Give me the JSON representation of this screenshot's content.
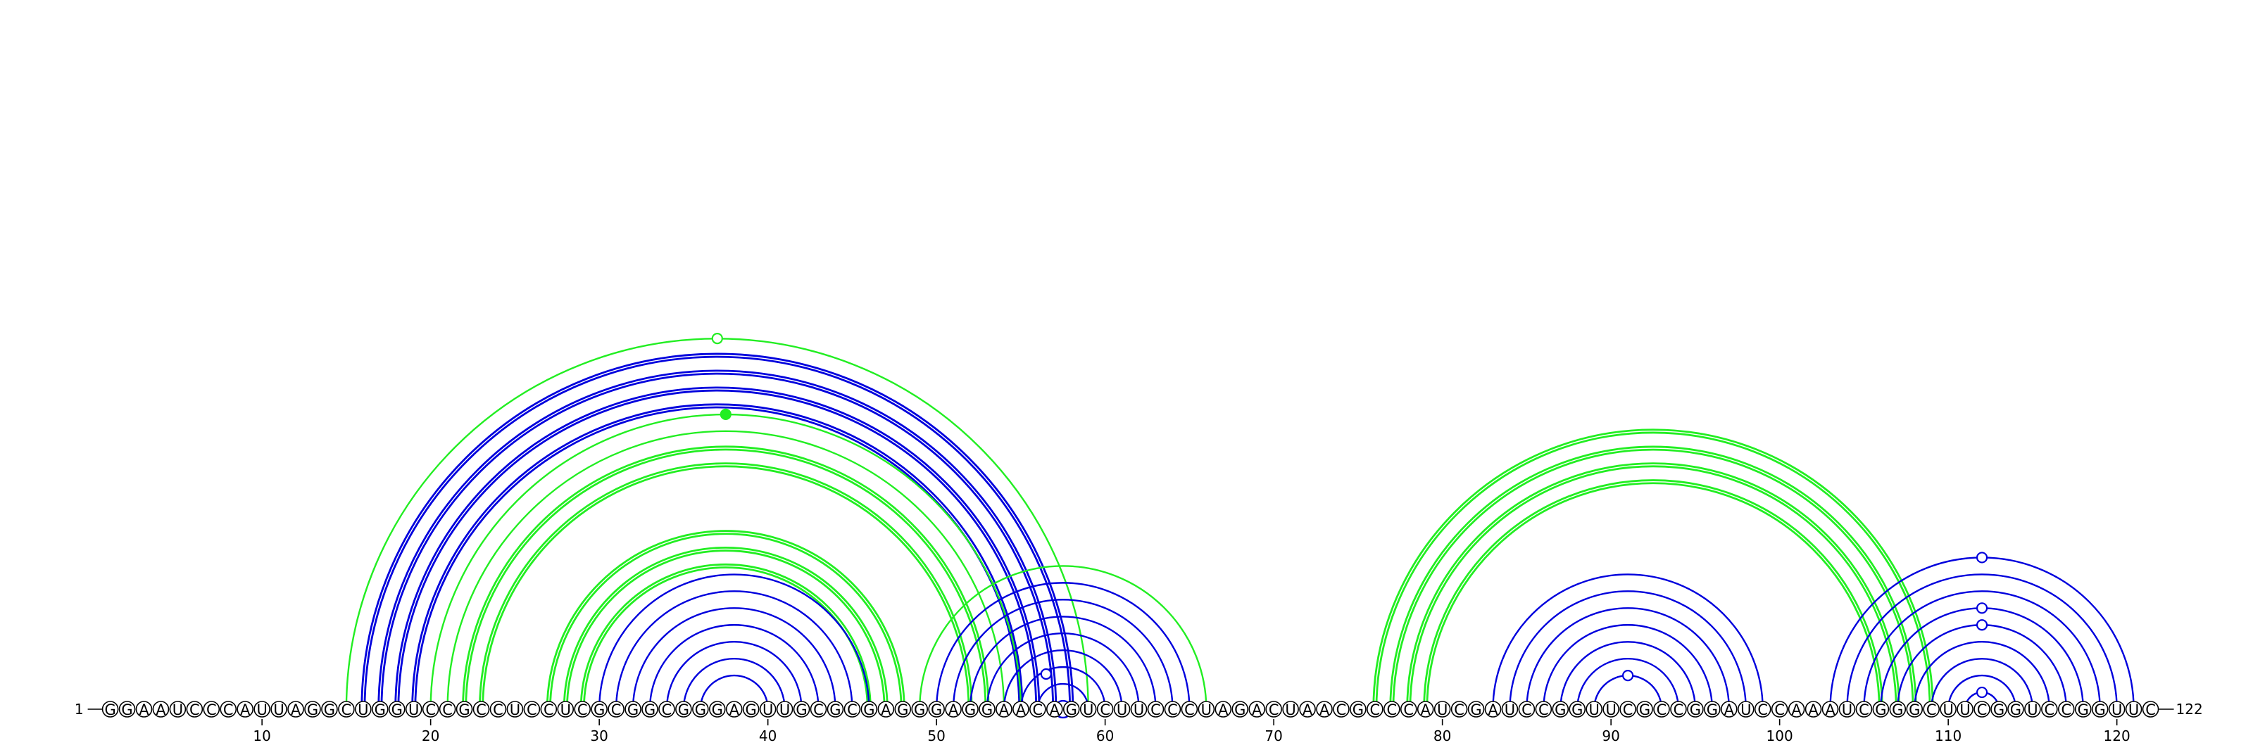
{
  "sequence": "GGAAUCCCAUUAGGCUGGUCCGCCUCCUCGCGGCGGGAGUUGCGCGAGGGAGGAACAGUCUUCCCUAGACUAACGCCCAUCGAUCCGGUUCGCCGGAUCCAAAUCGGGCUUCGGUCCGGUUC",
  "start_label": "1",
  "end_label": "122",
  "tick_labels": [
    "10",
    "20",
    "30",
    "40",
    "50",
    "60",
    "70",
    "80",
    "90",
    "100",
    "110",
    "120"
  ],
  "colors": {
    "blue": "#0000dd",
    "green": "#22ee22"
  },
  "helices": [
    {
      "color": "blue",
      "i": 16,
      "j": 58,
      "len": 4,
      "double": true
    },
    {
      "color": "green",
      "i": 15,
      "j": 59,
      "len": 1,
      "double": false,
      "marker": "open"
    },
    {
      "color": "green",
      "i": 20,
      "j": 55,
      "len": 2,
      "double": false,
      "marker": "filled"
    },
    {
      "color": "green",
      "i": 22,
      "j": 53,
      "len": 2,
      "double": true
    },
    {
      "color": "green",
      "i": 27,
      "j": 48,
      "len": 3,
      "double": true
    },
    {
      "color": "blue",
      "i": 30,
      "j": 46,
      "len": 7,
      "double": false
    },
    {
      "color": "green",
      "i": 49,
      "j": 66,
      "len": 1,
      "double": false
    },
    {
      "color": "blue",
      "i": 50,
      "j": 65,
      "len": 9,
      "double": false,
      "marker": "open"
    },
    {
      "color": "green",
      "i": 76,
      "j": 109,
      "len": 4,
      "double": true
    },
    {
      "color": "blue",
      "i": 83,
      "j": 99,
      "len": 7,
      "double": false,
      "marker": "open"
    },
    {
      "color": "blue",
      "i": 103,
      "j": 121,
      "len": 9,
      "double": false,
      "marker": "open"
    }
  ]
}
